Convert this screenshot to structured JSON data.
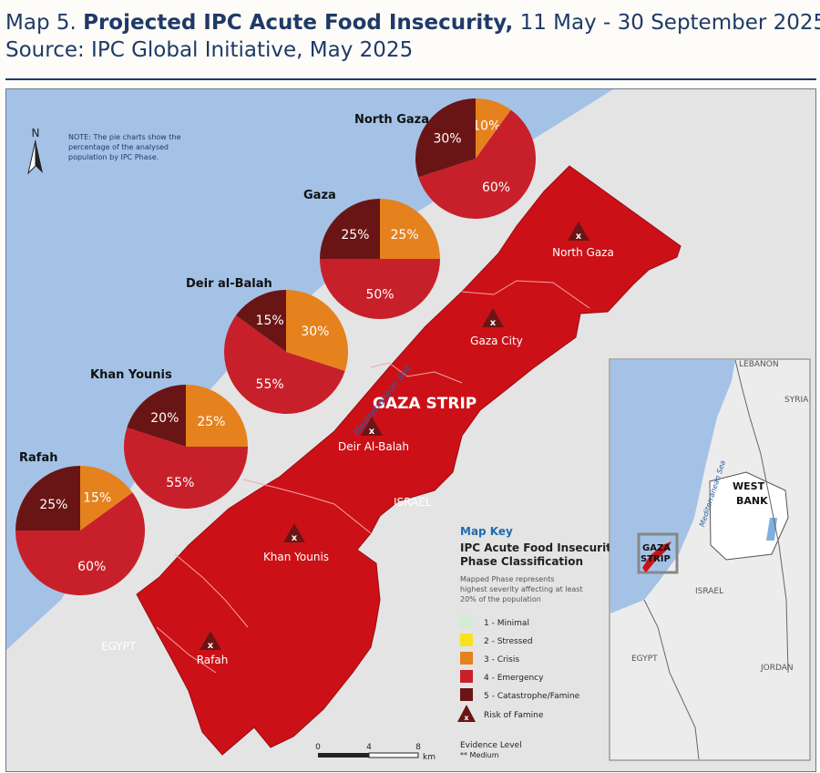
{
  "header": {
    "map_number": "Map 5.",
    "title": "Projected IPC Acute Food Insecurity,",
    "period": "11 May - 30 September 2025",
    "source": "Source: IPC Global Initiative, May 2025"
  },
  "note": [
    "NOTE: The pie charts show the",
    "percentage of the analysed",
    "population by IPC Phase."
  ],
  "north_arrow": "N",
  "sea_label": "Mediterranean Sea",
  "region_label": "GAZA STRIP",
  "country_labels": {
    "israel": "ISRAEL",
    "egypt": "EGYPT"
  },
  "governorates": [
    {
      "name": "North Gaza",
      "marker": "x"
    },
    {
      "name": "Gaza City",
      "marker": "x"
    },
    {
      "name": "Deir Al-Balah",
      "marker": "x"
    },
    {
      "name": "Khan Younis",
      "marker": "x"
    },
    {
      "name": "Rafah",
      "marker": "x"
    }
  ],
  "chart_data": {
    "type": "pie",
    "charts": [
      {
        "title": "North Gaza",
        "labels": [
          "Phase 3",
          "Phase 4",
          "Phase 5"
        ],
        "values": [
          10,
          60,
          30
        ],
        "value_labels": [
          "10%",
          "60%",
          "30%"
        ]
      },
      {
        "title": "Gaza",
        "labels": [
          "Phase 3",
          "Phase 4",
          "Phase 5"
        ],
        "values": [
          25,
          50,
          25
        ],
        "value_labels": [
          "25%",
          "50%",
          "25%"
        ]
      },
      {
        "title": "Deir al-Balah",
        "labels": [
          "Phase 3",
          "Phase 4",
          "Phase 5"
        ],
        "values": [
          30,
          55,
          15
        ],
        "value_labels": [
          "30%",
          "55%",
          "15%"
        ]
      },
      {
        "title": "Khan Younis",
        "labels": [
          "Phase 3",
          "Phase 4",
          "Phase 5"
        ],
        "values": [
          25,
          55,
          20
        ],
        "value_labels": [
          "25%",
          "55%",
          "20%"
        ]
      },
      {
        "title": "Rafah",
        "labels": [
          "Phase 3",
          "Phase 4",
          "Phase 5"
        ],
        "values": [
          15,
          60,
          25
        ],
        "value_labels": [
          "15%",
          "60%",
          "25%"
        ]
      }
    ],
    "colors": {
      "phase3": "#e5821e",
      "phase4": "#c8202a",
      "phase5": "#6a1515"
    }
  },
  "legend": {
    "title": "Map Key",
    "subtitle": [
      "IPC Acute Food Insecurity",
      "Phase Classification"
    ],
    "description": [
      "Mapped Phase represents",
      "highest severity affecting at least",
      "20% of the population"
    ],
    "items": [
      {
        "label": "1 - Minimal",
        "color": "#d4ebd3"
      },
      {
        "label": "2 - Stressed",
        "color": "#f7e21d"
      },
      {
        "label": "3 - Crisis",
        "color": "#e5821e"
      },
      {
        "label": "4 - Emergency",
        "color": "#c8202a"
      },
      {
        "label": "5 - Catastrophe/Famine",
        "color": "#6a1515"
      }
    ],
    "risk_label": "Risk of Famine",
    "evidence_title": "Evidence Level",
    "evidence_value": "** Medium"
  },
  "scale": {
    "ticks": [
      "0",
      "4",
      "8"
    ],
    "unit": "km"
  },
  "inset": {
    "labels": [
      "LEBANON",
      "SYRIA",
      "WEST",
      "BANK",
      "GAZA",
      "STRIP",
      "ISRAEL",
      "EGYPT",
      "JORDAN"
    ],
    "sea_label": "Mediterranean Sea"
  }
}
